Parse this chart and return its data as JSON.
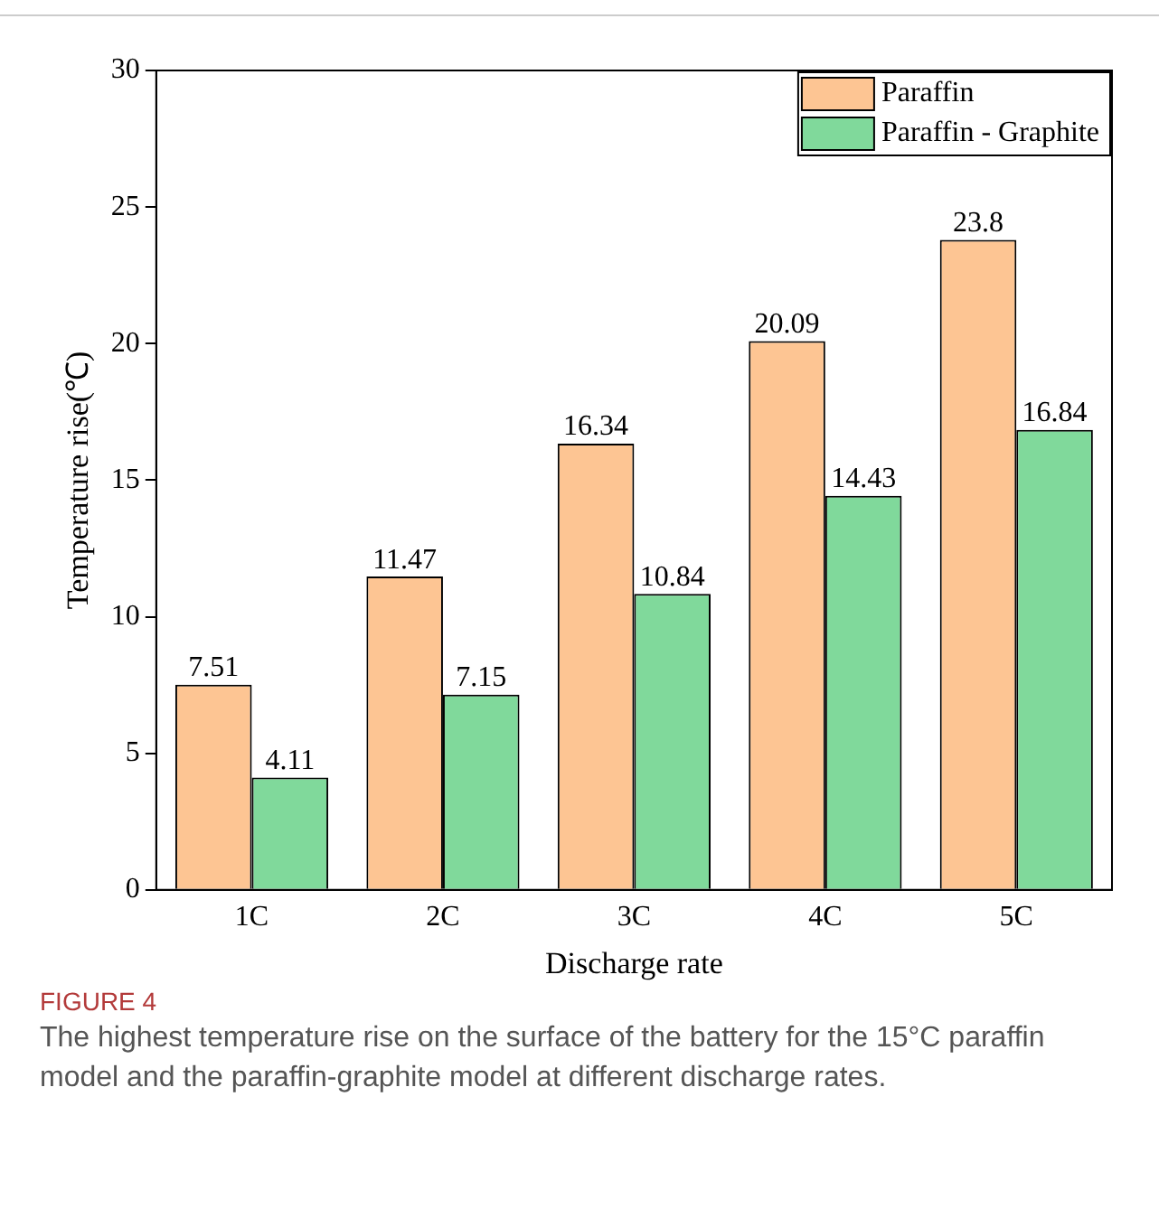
{
  "chart_data": {
    "type": "bar",
    "xlabel": "Discharge rate",
    "ylabel": "Temperature rise(℃)",
    "categories": [
      "1C",
      "2C",
      "3C",
      "4C",
      "5C"
    ],
    "series": [
      {
        "name": "Paraffin",
        "color": "#fdc593",
        "values": [
          7.51,
          11.47,
          16.34,
          20.09,
          23.8
        ]
      },
      {
        "name": "Paraffin - Graphite",
        "color": "#80d99b",
        "values": [
          4.11,
          7.15,
          10.84,
          14.43,
          16.84
        ]
      }
    ],
    "ylim": [
      0,
      30
    ],
    "yticks": [
      0,
      5,
      10,
      15,
      20,
      25,
      30
    ],
    "grid": false,
    "legend": "top right",
    "data_labels": true,
    "annotations": [
      "FIGURE 4",
      "The highest temperature rise on the surface of the battery for the 15°C paraffin model and the paraffin-graphite model at different discharge rates."
    ]
  }
}
